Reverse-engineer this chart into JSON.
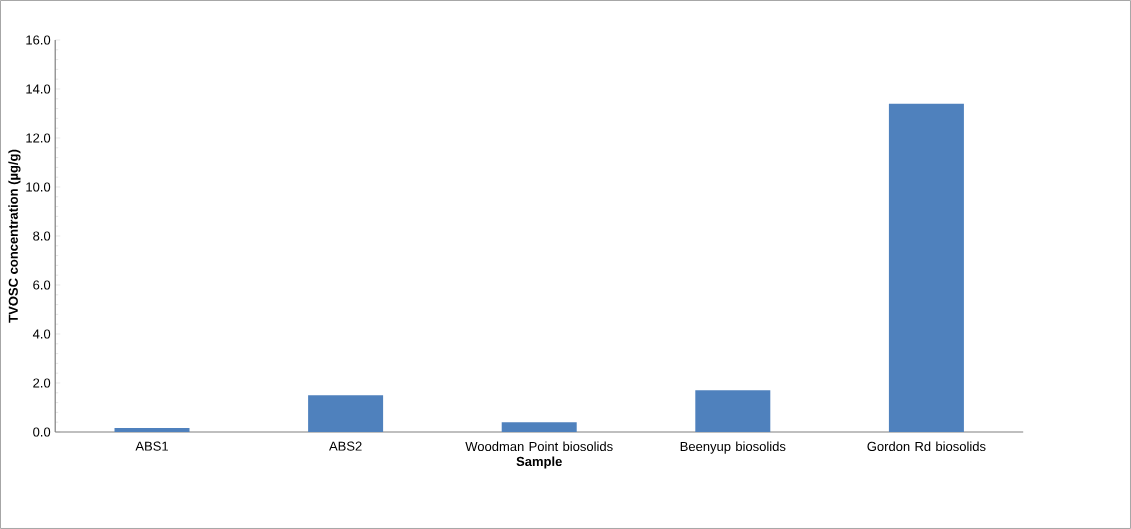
{
  "chart_data": {
    "type": "bar",
    "xlabel": "Sample",
    "ylabel": "TVOSC concentration (µg/g)",
    "categories": [
      "ABS1",
      "ABS2",
      "Woodman Point biosolids",
      "Beenyup biosolids",
      "Gordon Rd biosolids"
    ],
    "values": [
      0.16,
      1.5,
      0.4,
      1.7,
      13.4
    ],
    "color": "#4f81bd",
    "ylim": [
      0,
      16
    ],
    "yticks": [
      {
        "value": 0,
        "label": "0.0"
      },
      {
        "value": 2,
        "label": "2.0"
      },
      {
        "value": 4,
        "label": "4.0"
      },
      {
        "value": 6,
        "label": "6.0"
      },
      {
        "value": 8,
        "label": "8.0"
      },
      {
        "value": 10,
        "label": "10.0"
      },
      {
        "value": 12,
        "label": "12.0"
      },
      {
        "value": 14,
        "label": "14.0"
      },
      {
        "value": 16,
        "label": "16.0"
      }
    ]
  }
}
